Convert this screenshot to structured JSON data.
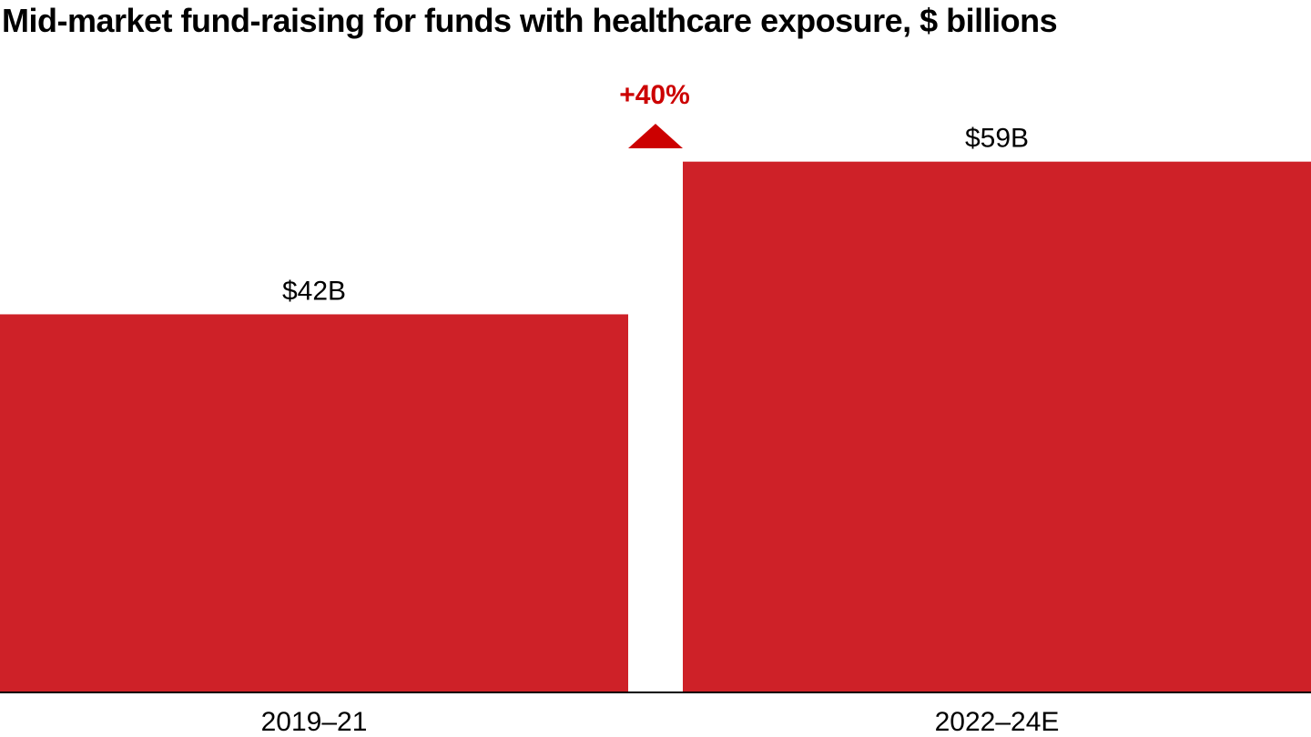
{
  "chart_data": {
    "type": "bar",
    "title": "Mid-market fund-raising for funds with healthcare exposure, $ billions",
    "categories": [
      "2019–21",
      "2022–24E"
    ],
    "values": [
      42,
      59
    ],
    "data_labels": [
      "$42B",
      "$59B"
    ],
    "annotation": "+40%",
    "xlabel": "",
    "ylabel": "",
    "ylim": [
      0,
      77
    ],
    "grid": false,
    "colors": {
      "bar": "#CE2128",
      "annotation": "#CC0000",
      "axis": "#000000"
    }
  }
}
